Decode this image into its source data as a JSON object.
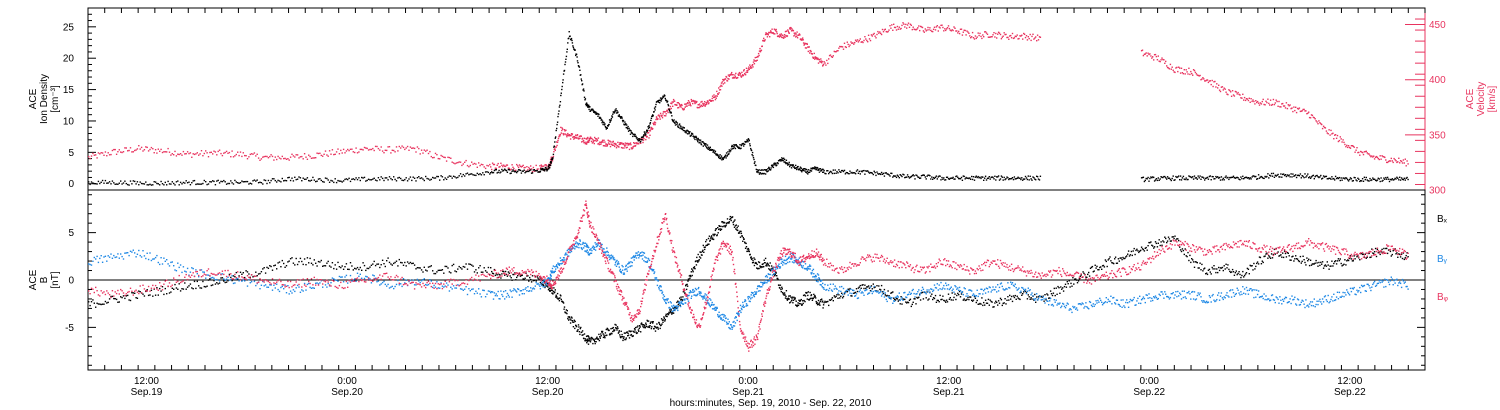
{
  "chart_data": [
    {
      "type": "scatter",
      "panel": "top",
      "ylabel": [
        "ACE",
        "Ion Density",
        "[cm⁻³]"
      ],
      "ylabel_right": [
        "ACE",
        "Velocity",
        "[km/s]"
      ],
      "ylim": [
        -1,
        28
      ],
      "ylim_right": [
        300,
        465
      ],
      "yticks": [
        0,
        5,
        10,
        15,
        20,
        25
      ],
      "yticks_right": [
        300,
        350,
        400,
        450
      ],
      "grid": false,
      "series": [
        {
          "axis": "left",
          "color": "#000000",
          "x": [
            0,
            3,
            6,
            9,
            12,
            15,
            18,
            21,
            24,
            27,
            30,
            33,
            36,
            39,
            42,
            45,
            48,
            50,
            52,
            54,
            55,
            55.5,
            56.5,
            57.5,
            58.5,
            59.5,
            60,
            61,
            62,
            63,
            64,
            65,
            66,
            67,
            68,
            69,
            70,
            71,
            72,
            73,
            74,
            75,
            76,
            77,
            78,
            79,
            80,
            81,
            82,
            83,
            84,
            85,
            86,
            87,
            88,
            90,
            92,
            94,
            96,
            98,
            100,
            102,
            104,
            106,
            108,
            110,
            112,
            114,
            116,
            118,
            120,
            122,
            124,
            126,
            128,
            130,
            132,
            134,
            136,
            138,
            140,
            142,
            144,
            146,
            148,
            150,
            152,
            154,
            156,
            158
          ],
          "y": [
            0.3,
            0.3,
            0.2,
            0.2,
            0.3,
            0.3,
            0.3,
            0.4,
            0.9,
            0.8,
            0.6,
            0.8,
            0.9,
            0.9,
            1.0,
            1.5,
            2.0,
            2.1,
            2.0,
            2.2,
            2.5,
            4.0,
            14.0,
            24.0,
            20.0,
            13.0,
            12.0,
            11.0,
            9.0,
            12.0,
            10.0,
            8.0,
            7.0,
            9.0,
            13.0,
            14.0,
            10.0,
            9.0,
            8.0,
            7.0,
            6.0,
            5.0,
            4.0,
            6.0,
            6.0,
            7.0,
            2.0,
            2.0,
            3.0,
            4.0,
            3.0,
            2.5,
            2.0,
            2.5,
            2.0,
            2.0,
            2.0,
            1.8,
            1.5,
            1.2,
            1.2,
            1.0,
            1.0,
            1.0,
            1.0,
            1.0,
            1.0,
            1.0,
            null,
            null,
            null,
            null,
            null,
            0.8,
            0.9,
            1.0,
            1.0,
            1.0,
            1.0,
            1.0,
            1.2,
            1.5,
            1.5,
            1.3,
            1.0,
            0.9,
            0.8,
            0.8,
            0.8,
            0.8
          ]
        },
        {
          "axis": "right",
          "color": "#e8345f",
          "x": [
            0,
            3,
            6,
            9,
            12,
            15,
            18,
            21,
            24,
            27,
            30,
            33,
            36,
            39,
            42,
            45,
            48,
            50,
            52,
            54,
            55,
            55.5,
            56.5,
            57.5,
            58.5,
            59.5,
            60,
            61,
            62,
            63,
            64,
            65,
            66,
            67,
            68,
            69,
            70,
            71,
            72,
            73,
            74,
            75,
            76,
            77,
            78,
            79,
            80,
            81,
            82,
            83,
            84,
            85,
            86,
            87,
            88,
            90,
            92,
            94,
            96,
            98,
            100,
            102,
            104,
            106,
            108,
            110,
            112,
            114,
            116,
            118,
            120,
            122,
            124,
            126,
            128,
            130,
            132,
            134,
            136,
            138,
            140,
            142,
            144,
            146,
            148,
            150,
            152,
            154,
            156,
            158
          ],
          "y": [
            330,
            335,
            338,
            336,
            333,
            334,
            333,
            330,
            330,
            332,
            335,
            338,
            337,
            338,
            330,
            325,
            322,
            322,
            320,
            320,
            322,
            330,
            355,
            350,
            348,
            345,
            346,
            345,
            343,
            342,
            341,
            340,
            345,
            350,
            365,
            370,
            380,
            375,
            380,
            378,
            380,
            385,
            400,
            405,
            405,
            410,
            420,
            440,
            445,
            440,
            445,
            440,
            430,
            420,
            415,
            430,
            435,
            440,
            448,
            450,
            445,
            448,
            445,
            440,
            442,
            440,
            440,
            438,
            null,
            null,
            null,
            null,
            null,
            425,
            420,
            410,
            408,
            400,
            390,
            385,
            380,
            380,
            375,
            370,
            355,
            345,
            335,
            330,
            328,
            325
          ]
        }
      ]
    },
    {
      "type": "scatter",
      "panel": "bottom",
      "ylabel": [
        "ACE",
        "B",
        "[nT]"
      ],
      "ylim": [
        -9.5,
        9.5
      ],
      "yticks": [
        -5,
        0,
        5
      ],
      "zero_line": true,
      "grid": false,
      "legend_placement": "right",
      "xlabel": "hours:minutes, Sep. 19, 2010 - Sep. 22, 2010",
      "xlim": [
        0,
        160
      ],
      "xticks": [
        {
          "x": 7,
          "label": [
            "12:00",
            "Sep.19"
          ]
        },
        {
          "x": 31,
          "label": [
            "0:00",
            "Sep.20"
          ]
        },
        {
          "x": 55,
          "label": [
            "12:00",
            "Sep.20"
          ]
        },
        {
          "x": 79,
          "label": [
            "0:00",
            "Sep.21"
          ]
        },
        {
          "x": 103,
          "label": [
            "12:00",
            "Sep.21"
          ]
        },
        {
          "x": 127,
          "label": [
            "0:00",
            "Sep.22"
          ]
        },
        {
          "x": 151,
          "label": [
            "12:00",
            "Sep.22"
          ]
        }
      ],
      "series": [
        {
          "name": "Bₓ",
          "color": "#000000",
          "x": [
            0,
            3,
            6,
            9,
            12,
            15,
            18,
            21,
            24,
            27,
            30,
            33,
            36,
            39,
            42,
            45,
            48,
            50,
            52,
            54,
            55,
            55.5,
            56.5,
            57.5,
            58.5,
            59.5,
            60,
            61,
            62,
            63,
            64,
            65,
            66,
            67,
            68,
            69,
            70,
            71,
            72,
            73,
            74,
            75,
            76,
            77,
            78,
            79,
            80,
            81,
            82,
            83,
            84,
            85,
            86,
            87,
            88,
            90,
            92,
            94,
            96,
            98,
            100,
            102,
            104,
            106,
            108,
            110,
            112,
            114,
            116,
            118,
            120,
            122,
            124,
            126,
            128,
            130,
            132,
            134,
            136,
            138,
            140,
            142,
            144,
            146,
            148,
            150,
            152,
            154,
            156,
            158
          ],
          "y": [
            -2.5,
            -2.0,
            -1.5,
            -1.0,
            -0.5,
            -0.2,
            0.5,
            1.0,
            2.0,
            2.0,
            1.5,
            1.5,
            2.0,
            1.5,
            1.0,
            1.5,
            1.0,
            0.5,
            0.5,
            0.0,
            -0.5,
            -1.0,
            -2.0,
            -4.0,
            -5.0,
            -6.0,
            -6.5,
            -6.0,
            -5.5,
            -5.0,
            -6.0,
            -5.5,
            -5.0,
            -4.5,
            -5.0,
            -4.0,
            -3.0,
            -2.0,
            0.5,
            2.5,
            4.0,
            5.0,
            6.0,
            6.5,
            5.0,
            3.0,
            1.5,
            2.0,
            1.0,
            -1.0,
            -2.0,
            -2.5,
            -1.5,
            -2.0,
            -2.5,
            -1.5,
            -1.0,
            -0.5,
            -1.5,
            -2.5,
            -1.5,
            -2.0,
            -1.5,
            -2.0,
            -2.5,
            -2.0,
            -1.5,
            -2.0,
            -1.0,
            0.0,
            1.0,
            2.0,
            2.5,
            3.5,
            4.0,
            4.5,
            2.0,
            1.0,
            1.5,
            0.5,
            2.0,
            3.0,
            2.5,
            2.0,
            1.5,
            2.0,
            2.5,
            3.0,
            3.0,
            2.5
          ]
        },
        {
          "name": "Bᵧ",
          "color": "#1e88e5",
          "x": [
            0,
            3,
            6,
            9,
            12,
            15,
            18,
            21,
            24,
            27,
            30,
            33,
            36,
            39,
            42,
            45,
            48,
            50,
            52,
            54,
            55,
            55.5,
            56.5,
            57.5,
            58.5,
            59.5,
            60,
            61,
            62,
            63,
            64,
            65,
            66,
            67,
            68,
            69,
            70,
            71,
            72,
            73,
            74,
            75,
            76,
            77,
            78,
            79,
            80,
            81,
            82,
            83,
            84,
            85,
            86,
            87,
            88,
            90,
            92,
            94,
            96,
            98,
            100,
            102,
            104,
            106,
            108,
            110,
            112,
            114,
            116,
            118,
            120,
            122,
            124,
            126,
            128,
            130,
            132,
            134,
            136,
            138,
            140,
            142,
            144,
            146,
            148,
            150,
            152,
            154,
            156,
            158
          ],
          "y": [
            2.0,
            2.5,
            3.0,
            2.0,
            1.0,
            0.5,
            0.0,
            -0.5,
            -1.0,
            -0.5,
            0.0,
            0.5,
            -0.5,
            0.0,
            -0.5,
            -1.0,
            -1.5,
            -1.5,
            -1.0,
            -0.5,
            0.0,
            1.0,
            2.0,
            3.0,
            4.0,
            3.5,
            3.0,
            4.0,
            3.0,
            2.0,
            1.0,
            2.0,
            3.0,
            2.0,
            0.0,
            -2.0,
            -3.0,
            -2.5,
            -1.5,
            -1.0,
            -2.0,
            -3.0,
            -4.0,
            -5.0,
            -3.0,
            -2.0,
            -1.0,
            0.0,
            1.0,
            2.0,
            2.5,
            2.0,
            1.5,
            0.5,
            -0.5,
            -1.0,
            -1.5,
            -1.0,
            -2.0,
            -1.5,
            -1.0,
            -0.5,
            -1.0,
            -1.5,
            -1.0,
            -0.5,
            -1.0,
            -2.0,
            -2.5,
            -3.0,
            -2.5,
            -2.0,
            -2.5,
            -2.0,
            -1.5,
            -1.5,
            -1.5,
            -2.0,
            -1.5,
            -1.0,
            -1.5,
            -2.0,
            -2.0,
            -2.5,
            -2.0,
            -1.5,
            -1.0,
            -0.5,
            0.0,
            -0.5
          ]
        },
        {
          "name": "Bᵩ",
          "color": "#e8345f",
          "x": [
            0,
            3,
            6,
            9,
            12,
            15,
            18,
            21,
            24,
            27,
            30,
            33,
            36,
            39,
            42,
            45,
            48,
            50,
            52,
            54,
            55,
            55.5,
            56.5,
            57.5,
            58.5,
            59.5,
            60,
            61,
            62,
            63,
            64,
            65,
            66,
            67,
            68,
            69,
            70,
            71,
            72,
            73,
            74,
            75,
            76,
            77,
            78,
            79,
            80,
            81,
            82,
            83,
            84,
            85,
            86,
            87,
            88,
            90,
            92,
            94,
            96,
            98,
            100,
            102,
            104,
            106,
            108,
            110,
            112,
            114,
            116,
            118,
            120,
            122,
            124,
            126,
            128,
            130,
            132,
            134,
            136,
            138,
            140,
            142,
            144,
            146,
            148,
            150,
            152,
            154,
            156,
            158
          ],
          "y": [
            -1.0,
            -1.5,
            -1.0,
            -0.5,
            0.5,
            1.0,
            0.5,
            0.0,
            -0.5,
            0.0,
            -0.5,
            0.0,
            0.5,
            -0.5,
            -0.5,
            0.0,
            0.5,
            1.0,
            1.0,
            0.5,
            0.0,
            -0.5,
            1.0,
            3.0,
            5.0,
            8.0,
            6.0,
            4.0,
            2.0,
            0.0,
            -2.0,
            -4.0,
            -3.0,
            1.0,
            4.0,
            7.0,
            3.0,
            0.0,
            -3.0,
            -5.0,
            -2.0,
            2.0,
            4.0,
            3.0,
            -5.0,
            -7.0,
            -6.0,
            -2.0,
            1.0,
            3.0,
            3.0,
            2.0,
            2.5,
            3.0,
            2.0,
            1.0,
            2.0,
            2.5,
            2.0,
            1.5,
            1.0,
            2.0,
            1.5,
            1.0,
            2.0,
            1.5,
            1.0,
            0.5,
            1.0,
            0.5,
            0.0,
            0.5,
            1.0,
            1.5,
            3.0,
            4.0,
            3.5,
            3.0,
            3.5,
            4.0,
            3.5,
            3.0,
            3.5,
            4.0,
            3.5,
            3.0,
            2.5,
            3.0,
            3.5,
            2.5
          ]
        }
      ]
    }
  ]
}
